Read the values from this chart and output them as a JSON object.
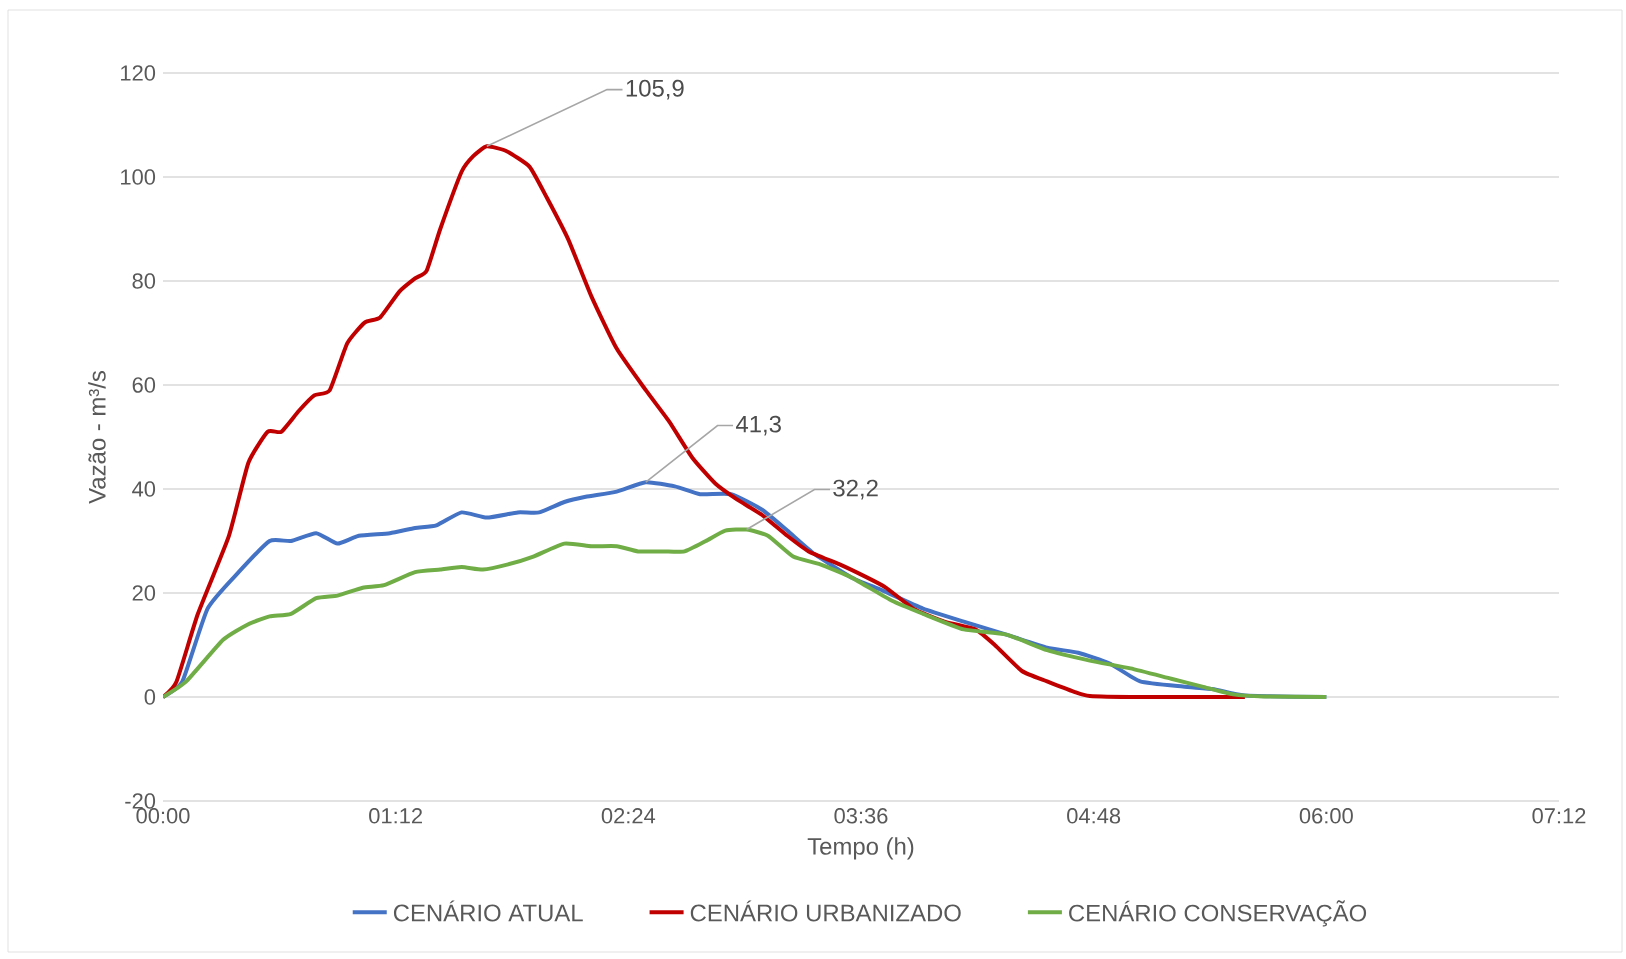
{
  "chart_data": {
    "type": "line",
    "xlabel": "Tempo (h)",
    "ylabel": "Vazão - m³/s",
    "xlim": [
      0,
      7.2
    ],
    "ylim": [
      -20,
      120
    ],
    "xticks": [
      {
        "value": 0,
        "label": "00:00"
      },
      {
        "value": 1.2,
        "label": "01:12"
      },
      {
        "value": 2.4,
        "label": "02:24"
      },
      {
        "value": 3.6,
        "label": "03:36"
      },
      {
        "value": 4.8,
        "label": "04:48"
      },
      {
        "value": 6.0,
        "label": "06:00"
      },
      {
        "value": 7.2,
        "label": "07:12"
      }
    ],
    "yticks": [
      -20,
      0,
      20,
      40,
      60,
      80,
      100,
      120
    ],
    "grid": "y",
    "legend": "bottom",
    "marker": "none",
    "line_style": "solid",
    "series": [
      {
        "name": "CENÁRIO ATUAL",
        "color": "#4472c4",
        "x": [
          0,
          0.1,
          0.23,
          0.39,
          0.55,
          0.66,
          0.79,
          0.9,
          1.01,
          1.17,
          1.3,
          1.41,
          1.54,
          1.67,
          1.83,
          1.94,
          2.07,
          2.18,
          2.34,
          2.49,
          2.64,
          2.77,
          2.93,
          3.09,
          3.22,
          3.36,
          3.55,
          3.71,
          3.92,
          4.13,
          4.35,
          4.56,
          4.72,
          4.88,
          5.04,
          5.26,
          5.42,
          5.58,
          6.0
        ],
        "values": [
          0,
          3,
          17,
          24,
          30,
          30,
          31.5,
          29.5,
          31,
          31.5,
          32.5,
          33,
          35.5,
          34.5,
          35.5,
          35.5,
          37.5,
          38.5,
          39.5,
          41.3,
          40.5,
          39,
          39,
          36,
          32,
          27.5,
          23,
          20.5,
          17,
          14.5,
          12,
          9.5,
          8.5,
          6.5,
          3,
          2,
          1.5,
          0.3,
          0
        ]
      },
      {
        "name": "CENÁRIO URBANIZADO",
        "color": "#c00000",
        "x": [
          0,
          0.07,
          0.18,
          0.34,
          0.44,
          0.54,
          0.61,
          0.7,
          0.78,
          0.86,
          0.95,
          1.04,
          1.12,
          1.22,
          1.3,
          1.36,
          1.43,
          1.54,
          1.6,
          1.67,
          1.77,
          1.89,
          1.98,
          2.09,
          2.21,
          2.34,
          2.49,
          2.61,
          2.73,
          2.85,
          2.96,
          3.09,
          3.22,
          3.33,
          3.49,
          3.63,
          3.73,
          3.87,
          4.03,
          4.19,
          4.29,
          4.43,
          4.56,
          4.7,
          4.78,
          5.04,
          5.58
        ],
        "values": [
          0,
          3,
          16,
          31,
          45,
          51,
          51,
          55,
          58,
          59,
          68,
          72,
          73,
          78,
          80.5,
          82,
          90,
          101,
          104,
          105.9,
          105,
          102,
          96,
          88,
          77,
          67,
          59,
          53,
          46,
          41,
          38,
          35,
          31,
          28,
          25.5,
          23,
          21,
          17,
          14.5,
          13,
          10,
          5,
          3,
          1,
          0.2,
          0,
          0
        ]
      },
      {
        "name": "CENÁRIO CONSERVAÇÃO",
        "color": "#70ad47",
        "x": [
          0,
          0.12,
          0.31,
          0.44,
          0.55,
          0.66,
          0.79,
          0.9,
          1.03,
          1.14,
          1.3,
          1.43,
          1.54,
          1.65,
          1.78,
          1.91,
          2.07,
          2.21,
          2.34,
          2.45,
          2.58,
          2.69,
          2.8,
          2.9,
          3.01,
          3.12,
          3.25,
          3.39,
          3.55,
          3.76,
          3.92,
          4.13,
          4.35,
          4.56,
          4.78,
          4.99,
          5.2,
          5.36,
          5.52,
          5.68,
          6.0
        ],
        "values": [
          0,
          3,
          11,
          14,
          15.5,
          16,
          19,
          19.5,
          21,
          21.5,
          24,
          24.5,
          25,
          24.5,
          25.5,
          27,
          29.5,
          29,
          29,
          28,
          28,
          28,
          30,
          32,
          32.2,
          31,
          27,
          25.5,
          23,
          18.5,
          16,
          13,
          12,
          9,
          7,
          5.5,
          3.5,
          2,
          0.5,
          0.1,
          0
        ]
      }
    ],
    "annotations": [
      {
        "text": "105,9",
        "x": 1.67,
        "y": 105.9
      },
      {
        "text": "41,3",
        "x": 2.49,
        "y": 41.3
      },
      {
        "text": "32,2",
        "x": 3.01,
        "y": 32.2
      }
    ]
  }
}
